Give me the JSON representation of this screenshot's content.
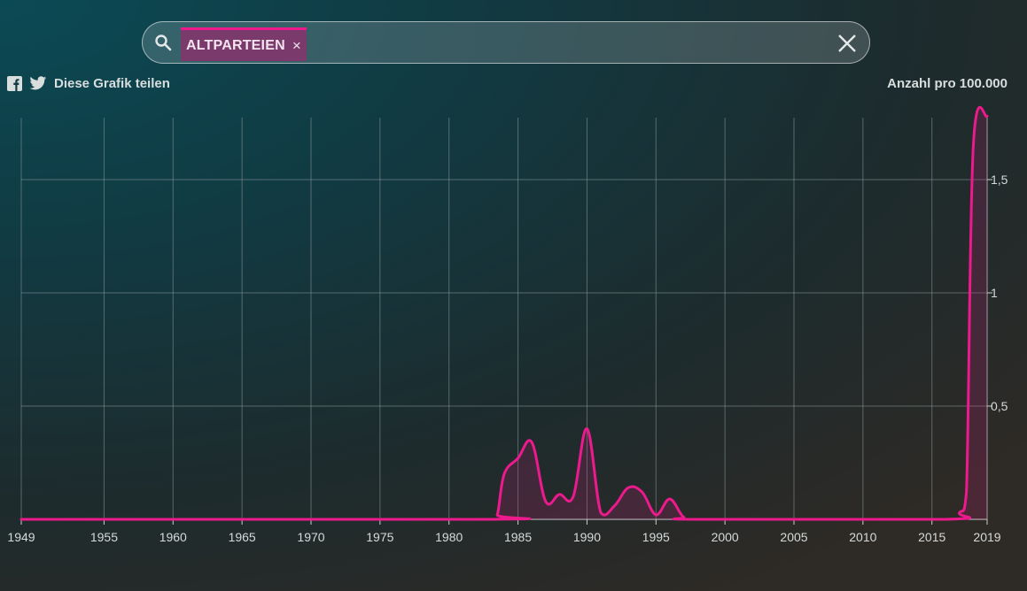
{
  "search": {
    "chip_label": "ALTPARTEIEN",
    "chip_remove": "×",
    "search_icon": "search-icon",
    "clear_icon": "close-icon"
  },
  "share": {
    "label": "Diese Grafik teilen",
    "icons": [
      "facebook-icon",
      "twitter-icon"
    ]
  },
  "unit_label": "Anzahl pro 100.000",
  "colors": {
    "accent": "#ec1a8c",
    "chip_bg": "#7a3a6b",
    "grid": "#8a9a9a"
  },
  "chart_data": {
    "type": "area",
    "title": "",
    "xlabel": "",
    "ylabel": "Anzahl pro 100.000",
    "xlim": [
      1949,
      2019
    ],
    "ylim": [
      0,
      1.78
    ],
    "x_ticks": [
      1949,
      1955,
      1960,
      1965,
      1970,
      1975,
      1980,
      1985,
      1990,
      1995,
      2000,
      2005,
      2010,
      2015,
      2019
    ],
    "y_ticks": [
      0.5,
      1,
      1.5
    ],
    "y_tick_labels": [
      "0,5",
      "1",
      "1,5"
    ],
    "grid": true,
    "series": [
      {
        "name": "ALTPARTEIEN",
        "color": "#ec1a8c",
        "x": [
          1949,
          1983,
          1983.5,
          1984,
          1985,
          1986,
          1987,
          1988,
          1989,
          1990,
          1991,
          1992,
          1993,
          1994,
          1995,
          1996,
          1997,
          1998,
          2016,
          2017,
          2017.5,
          2018,
          2019
        ],
        "y": [
          0,
          0,
          0.02,
          0.2,
          0.27,
          0.34,
          0.08,
          0.11,
          0.1,
          0.4,
          0.03,
          0.06,
          0.14,
          0.12,
          0.02,
          0.09,
          0.01,
          0,
          0,
          0.03,
          0.12,
          1.65,
          1.78
        ]
      }
    ]
  }
}
